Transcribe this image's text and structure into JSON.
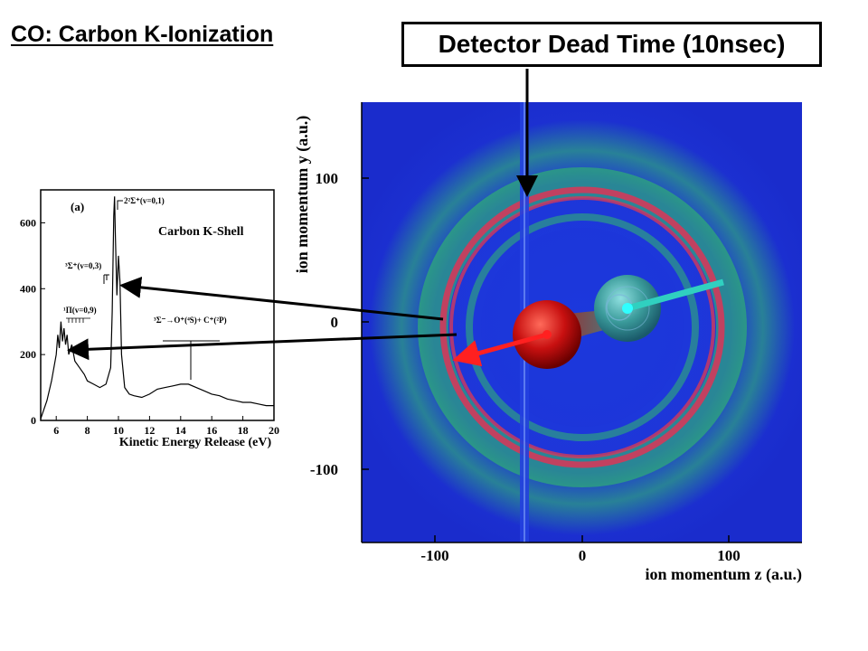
{
  "slide": {
    "title": "CO: Carbon K-Ionization",
    "callout": "Detector Dead Time (10nsec)"
  },
  "inset": {
    "panel_label": "(a)",
    "legend": "Carbon K-Shell",
    "xlabel": "Kinetic Energy Release (eV)",
    "x_ticks": [
      "6",
      "8",
      "10",
      "12",
      "14",
      "16",
      "18",
      "20"
    ],
    "y_ticks": [
      "0",
      "200",
      "400",
      "600"
    ],
    "annotations": {
      "sigma_top": "2²Σ⁺(v=0,1)",
      "sigma_left": "³Σ⁺(v=0,3)",
      "pi": "¹Π(v=0,9)",
      "channel": "³Σ⁻→O⁺(⁴S)+ C⁺(²P)"
    }
  },
  "momentum_plot": {
    "xlabel": "ion momentum z (a.u.)",
    "ylabel": "ion momentum y (a.u.)",
    "x_ticks": [
      "-100",
      "0",
      "100"
    ],
    "y_ticks": [
      "100",
      "0",
      "-100"
    ]
  },
  "colors": {
    "background": "#1e2fd8",
    "ring": "#d23a5a",
    "halo": "#33c860",
    "carbon_atom": "#cc1010",
    "oxygen_atom": "#3a9a9a",
    "arrow_red": "#ff2020",
    "arrow_cyan": "#30d0c0"
  },
  "chart_data": {
    "type": "line",
    "title": "Carbon K-Shell",
    "xlabel": "Kinetic Energy Release (eV)",
    "ylabel": "",
    "xlim": [
      5,
      20
    ],
    "ylim": [
      0,
      700
    ],
    "series": [
      {
        "x": [
          5.0,
          5.4,
          5.7,
          6.0,
          6.1,
          6.2,
          6.3,
          6.4,
          6.5,
          6.6,
          6.7,
          6.8,
          7.0,
          7.2,
          7.5,
          7.8,
          8.0,
          8.4,
          8.8,
          9.2,
          9.5,
          9.6,
          9.7,
          9.75,
          9.8,
          9.9,
          10.0,
          10.1,
          10.2,
          10.4,
          10.7,
          11.0,
          11.5,
          12.0,
          12.5,
          13.0,
          13.5,
          14.0,
          14.5,
          15.0,
          15.5,
          16.0,
          16.5,
          17.0,
          17.5,
          18.0,
          18.5,
          19.0,
          19.5,
          20.0
        ],
        "values": [
          5,
          60,
          120,
          200,
          260,
          220,
          300,
          240,
          280,
          230,
          260,
          200,
          230,
          180,
          160,
          140,
          120,
          110,
          100,
          110,
          160,
          330,
          620,
          680,
          560,
          380,
          500,
          420,
          200,
          100,
          80,
          75,
          70,
          80,
          95,
          100,
          105,
          110,
          110,
          100,
          90,
          80,
          75,
          65,
          60,
          55,
          55,
          50,
          45,
          45
        ]
      }
    ]
  }
}
